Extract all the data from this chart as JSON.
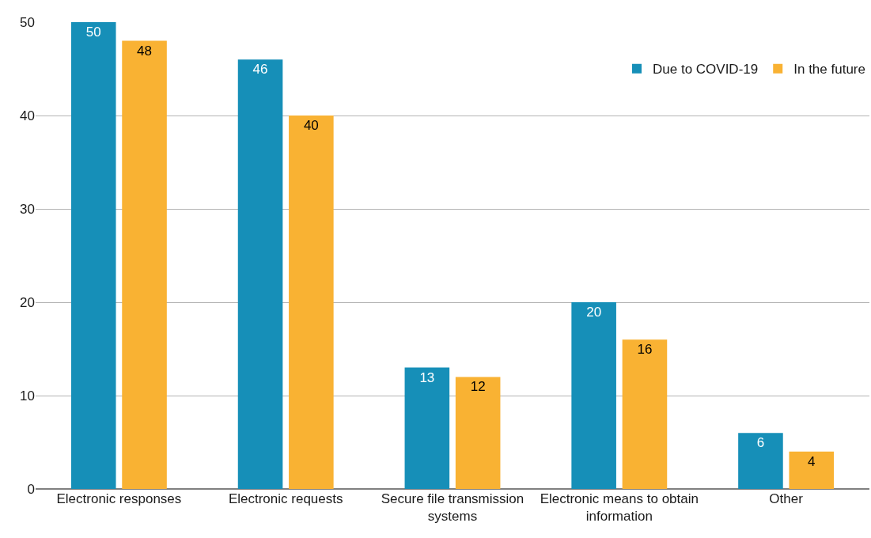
{
  "chart_data": {
    "type": "bar",
    "categories": [
      "Electronic responses",
      "Electronic requests",
      "Secure file transmission systems",
      "Electronic means to obtain information",
      "Other"
    ],
    "series": [
      {
        "name": "Due to COVID-19",
        "color": "#168fb8",
        "values": [
          50,
          46,
          13,
          20,
          6
        ]
      },
      {
        "name": "In the future",
        "color": "#f9b233",
        "values": [
          48,
          40,
          12,
          16,
          4
        ]
      }
    ],
    "ylim": [
      0,
      50
    ],
    "yticks": [
      0,
      10,
      20,
      30,
      40,
      50
    ],
    "grid": "y",
    "legend": "top right",
    "data_labels": true
  }
}
